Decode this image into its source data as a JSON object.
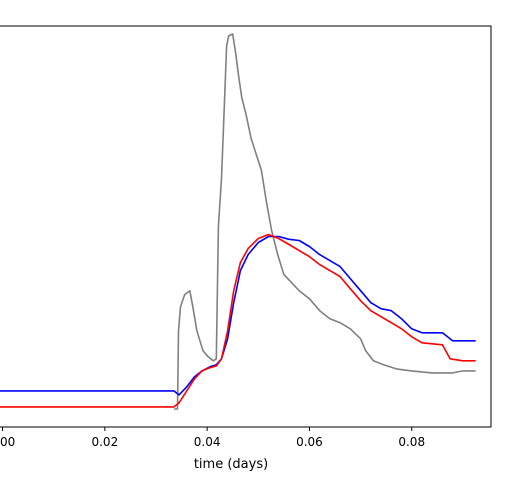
{
  "chart_data": {
    "type": "line",
    "xlabel": "time (days)",
    "ylabel": "",
    "title": "",
    "xlim": [
      -0.0005,
      0.0955
    ],
    "ylim": [
      0,
      1
    ],
    "grid": false,
    "legend": "none",
    "x_ticks": [
      0.0,
      0.02,
      0.04,
      0.06,
      0.08
    ],
    "x_tick_labels": [
      "00",
      "0.02",
      "0.04",
      "0.06",
      "0.08"
    ],
    "series": [
      {
        "color": "#808080",
        "points": [
          [
            0.0335,
            0.045
          ],
          [
            0.0342,
            0.045
          ],
          [
            0.0344,
            0.24
          ],
          [
            0.0348,
            0.3
          ],
          [
            0.0356,
            0.33
          ],
          [
            0.0366,
            0.34
          ],
          [
            0.0372,
            0.3
          ],
          [
            0.038,
            0.24
          ],
          [
            0.0392,
            0.19
          ],
          [
            0.0402,
            0.175
          ],
          [
            0.0412,
            0.165
          ],
          [
            0.0418,
            0.17
          ],
          [
            0.0422,
            0.5
          ],
          [
            0.0428,
            0.62
          ],
          [
            0.0433,
            0.78
          ],
          [
            0.0438,
            0.95
          ],
          [
            0.0442,
            0.975
          ],
          [
            0.045,
            0.98
          ],
          [
            0.0456,
            0.93
          ],
          [
            0.0462,
            0.87
          ],
          [
            0.0468,
            0.82
          ],
          [
            0.0476,
            0.78
          ],
          [
            0.0486,
            0.72
          ],
          [
            0.0496,
            0.68
          ],
          [
            0.0506,
            0.64
          ],
          [
            0.0516,
            0.56
          ],
          [
            0.0526,
            0.49
          ],
          [
            0.0538,
            0.43
          ],
          [
            0.055,
            0.38
          ],
          [
            0.0565,
            0.36
          ],
          [
            0.058,
            0.34
          ],
          [
            0.06,
            0.32
          ],
          [
            0.062,
            0.29
          ],
          [
            0.064,
            0.27
          ],
          [
            0.066,
            0.26
          ],
          [
            0.068,
            0.245
          ],
          [
            0.07,
            0.22
          ],
          [
            0.071,
            0.19
          ],
          [
            0.0725,
            0.165
          ],
          [
            0.0745,
            0.155
          ],
          [
            0.077,
            0.145
          ],
          [
            0.08,
            0.14
          ],
          [
            0.084,
            0.135
          ],
          [
            0.088,
            0.135
          ],
          [
            0.09,
            0.14
          ],
          [
            0.0925,
            0.14
          ]
        ]
      },
      {
        "color": "#0000ff",
        "points": [
          [
            -0.0005,
            0.09
          ],
          [
            0.0335,
            0.09
          ],
          [
            0.0345,
            0.08
          ],
          [
            0.036,
            0.1
          ],
          [
            0.0375,
            0.125
          ],
          [
            0.039,
            0.14
          ],
          [
            0.0405,
            0.15
          ],
          [
            0.0418,
            0.155
          ],
          [
            0.0428,
            0.17
          ],
          [
            0.044,
            0.22
          ],
          [
            0.0452,
            0.31
          ],
          [
            0.0465,
            0.39
          ],
          [
            0.048,
            0.43
          ],
          [
            0.05,
            0.46
          ],
          [
            0.052,
            0.475
          ],
          [
            0.054,
            0.475
          ],
          [
            0.056,
            0.468
          ],
          [
            0.058,
            0.465
          ],
          [
            0.06,
            0.45
          ],
          [
            0.062,
            0.43
          ],
          [
            0.064,
            0.415
          ],
          [
            0.066,
            0.4
          ],
          [
            0.068,
            0.37
          ],
          [
            0.07,
            0.34
          ],
          [
            0.072,
            0.31
          ],
          [
            0.074,
            0.295
          ],
          [
            0.076,
            0.29
          ],
          [
            0.078,
            0.27
          ],
          [
            0.08,
            0.245
          ],
          [
            0.082,
            0.235
          ],
          [
            0.086,
            0.235
          ],
          [
            0.088,
            0.215
          ],
          [
            0.0925,
            0.215
          ]
        ]
      },
      {
        "color": "#ff0000",
        "points": [
          [
            -0.0005,
            0.05
          ],
          [
            0.0335,
            0.05
          ],
          [
            0.0345,
            0.06
          ],
          [
            0.036,
            0.09
          ],
          [
            0.0375,
            0.12
          ],
          [
            0.039,
            0.14
          ],
          [
            0.0405,
            0.148
          ],
          [
            0.0418,
            0.152
          ],
          [
            0.0428,
            0.17
          ],
          [
            0.044,
            0.24
          ],
          [
            0.0452,
            0.34
          ],
          [
            0.0465,
            0.41
          ],
          [
            0.048,
            0.445
          ],
          [
            0.05,
            0.47
          ],
          [
            0.052,
            0.48
          ],
          [
            0.054,
            0.47
          ],
          [
            0.056,
            0.455
          ],
          [
            0.058,
            0.44
          ],
          [
            0.06,
            0.425
          ],
          [
            0.062,
            0.405
          ],
          [
            0.064,
            0.39
          ],
          [
            0.066,
            0.375
          ],
          [
            0.068,
            0.345
          ],
          [
            0.07,
            0.315
          ],
          [
            0.072,
            0.29
          ],
          [
            0.074,
            0.275
          ],
          [
            0.076,
            0.26
          ],
          [
            0.078,
            0.245
          ],
          [
            0.08,
            0.225
          ],
          [
            0.082,
            0.21
          ],
          [
            0.086,
            0.205
          ],
          [
            0.0875,
            0.17
          ],
          [
            0.09,
            0.165
          ],
          [
            0.0925,
            0.165
          ]
        ]
      }
    ]
  }
}
